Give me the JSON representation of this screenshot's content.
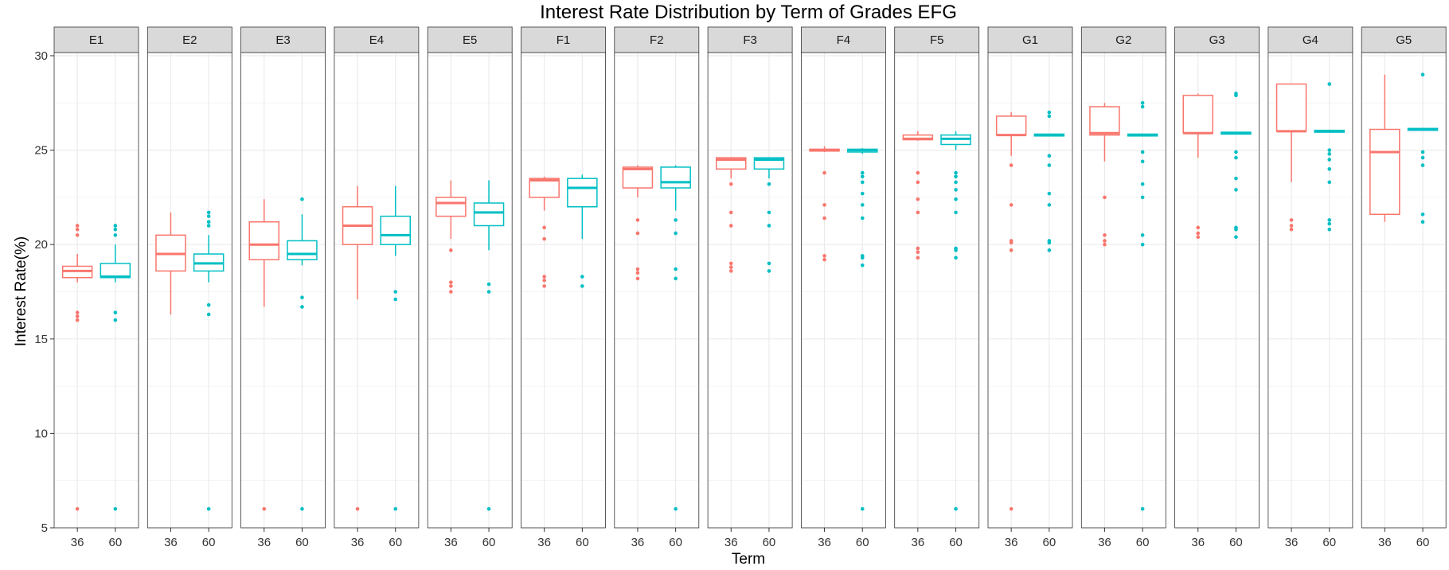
{
  "chart_data": {
    "type": "boxplot",
    "title": "Interest Rate Distribution by Term of Grades EFG",
    "xlabel": "Term",
    "ylabel": "Interest Rate(%)",
    "ylim": [
      5,
      30
    ],
    "yticks": [
      5,
      10,
      15,
      20,
      25,
      30
    ],
    "x_categories": [
      "36",
      "60"
    ],
    "grid": true,
    "colors": {
      "36": "#F8766D",
      "60": "#00BFC4"
    },
    "facets": [
      {
        "label": "E1",
        "boxes": [
          {
            "term": "36",
            "whisker_low": 18.0,
            "q1": 18.25,
            "median": 18.6,
            "q3": 18.85,
            "whisker_high": 19.5,
            "outliers": [
              16.0,
              16.2,
              16.4,
              20.5,
              20.8,
              21.0,
              6.0
            ]
          },
          {
            "term": "60",
            "whisker_low": 18.0,
            "q1": 18.25,
            "median": 18.3,
            "q3": 19.0,
            "whisker_high": 20.0,
            "outliers": [
              16.0,
              16.4,
              20.5,
              20.8,
              21.0,
              6.0
            ]
          }
        ]
      },
      {
        "label": "E2",
        "boxes": [
          {
            "term": "36",
            "whisker_low": 16.3,
            "q1": 18.6,
            "median": 19.5,
            "q3": 20.5,
            "whisker_high": 21.7,
            "outliers": []
          },
          {
            "term": "60",
            "whisker_low": 18.0,
            "q1": 18.6,
            "median": 19.0,
            "q3": 19.5,
            "whisker_high": 20.5,
            "outliers": [
              16.3,
              16.8,
              21.0,
              21.2,
              21.5,
              21.7,
              6.0
            ]
          }
        ]
      },
      {
        "label": "E3",
        "boxes": [
          {
            "term": "36",
            "whisker_low": 16.7,
            "q1": 19.2,
            "median": 20.0,
            "q3": 21.2,
            "whisker_high": 22.4,
            "outliers": [
              6.0
            ]
          },
          {
            "term": "60",
            "whisker_low": 18.9,
            "q1": 19.2,
            "median": 19.5,
            "q3": 20.2,
            "whisker_high": 21.6,
            "outliers": [
              16.7,
              17.2,
              22.4,
              6.0
            ]
          }
        ]
      },
      {
        "label": "E4",
        "boxes": [
          {
            "term": "36",
            "whisker_low": 17.1,
            "q1": 20.0,
            "median": 21.0,
            "q3": 22.0,
            "whisker_high": 23.1,
            "outliers": [
              6.0
            ]
          },
          {
            "term": "60",
            "whisker_low": 19.4,
            "q1": 20.0,
            "median": 20.5,
            "q3": 21.5,
            "whisker_high": 23.1,
            "outliers": [
              17.1,
              17.5,
              6.0
            ]
          }
        ]
      },
      {
        "label": "E5",
        "boxes": [
          {
            "term": "36",
            "whisker_low": 20.3,
            "q1": 21.5,
            "median": 22.2,
            "q3": 22.5,
            "whisker_high": 23.4,
            "outliers": [
              17.5,
              17.8,
              18.0,
              19.7
            ]
          },
          {
            "term": "60",
            "whisker_low": 19.7,
            "q1": 21.0,
            "median": 21.7,
            "q3": 22.2,
            "whisker_high": 23.4,
            "outliers": [
              17.5,
              17.9,
              6.0
            ]
          }
        ]
      },
      {
        "label": "F1",
        "boxes": [
          {
            "term": "36",
            "whisker_low": 21.8,
            "q1": 22.5,
            "median": 23.4,
            "q3": 23.5,
            "whisker_high": 23.6,
            "outliers": [
              17.8,
              18.1,
              18.3,
              20.3,
              20.9
            ]
          },
          {
            "term": "60",
            "whisker_low": 20.3,
            "q1": 22.0,
            "median": 23.0,
            "q3": 23.5,
            "whisker_high": 23.7,
            "outliers": [
              17.8,
              18.3
            ]
          }
        ]
      },
      {
        "label": "F2",
        "boxes": [
          {
            "term": "36",
            "whisker_low": 22.5,
            "q1": 23.0,
            "median": 24.0,
            "q3": 24.1,
            "whisker_high": 24.2,
            "outliers": [
              18.2,
              18.5,
              18.7,
              20.6,
              21.3
            ]
          },
          {
            "term": "60",
            "whisker_low": 21.8,
            "q1": 23.0,
            "median": 23.3,
            "q3": 24.1,
            "whisker_high": 24.2,
            "outliers": [
              18.2,
              18.7,
              20.6,
              21.3,
              6.0
            ]
          }
        ]
      },
      {
        "label": "F3",
        "boxes": [
          {
            "term": "36",
            "whisker_low": 23.5,
            "q1": 24.0,
            "median": 24.5,
            "q3": 24.6,
            "whisker_high": 24.6,
            "outliers": [
              18.6,
              18.8,
              19.0,
              21.0,
              21.7,
              23.2
            ]
          },
          {
            "term": "60",
            "whisker_low": 23.5,
            "q1": 24.0,
            "median": 24.5,
            "q3": 24.6,
            "whisker_high": 24.6,
            "outliers": [
              18.6,
              19.0,
              21.0,
              21.7,
              23.2
            ]
          }
        ]
      },
      {
        "label": "F4",
        "boxes": [
          {
            "term": "36",
            "whisker_low": 24.9,
            "q1": 24.95,
            "median": 25.0,
            "q3": 25.05,
            "whisker_high": 25.2,
            "outliers": [
              19.2,
              19.4,
              21.4,
              22.1,
              23.8
            ]
          },
          {
            "term": "60",
            "whisker_low": 24.8,
            "q1": 24.9,
            "median": 25.0,
            "q3": 25.05,
            "whisker_high": 25.1,
            "outliers": [
              18.9,
              19.3,
              19.4,
              21.4,
              22.1,
              22.7,
              23.3,
              23.6,
              23.8,
              6.0
            ]
          }
        ]
      },
      {
        "label": "F5",
        "boxes": [
          {
            "term": "36",
            "whisker_low": 25.5,
            "q1": 25.55,
            "median": 25.6,
            "q3": 25.8,
            "whisker_high": 26.0,
            "outliers": [
              19.3,
              19.6,
              19.8,
              21.7,
              22.4,
              23.3,
              23.8
            ]
          },
          {
            "term": "60",
            "whisker_low": 25.0,
            "q1": 25.3,
            "median": 25.6,
            "q3": 25.8,
            "whisker_high": 26.0,
            "outliers": [
              19.3,
              19.7,
              19.8,
              21.7,
              22.4,
              22.9,
              23.3,
              23.6,
              23.8,
              6.0
            ]
          }
        ]
      },
      {
        "label": "G1",
        "boxes": [
          {
            "term": "36",
            "whisker_low": 24.7,
            "q1": 25.8,
            "median": 25.8,
            "q3": 26.8,
            "whisker_high": 27.0,
            "outliers": [
              19.7,
              20.1,
              20.2,
              22.1,
              24.2,
              6.0
            ]
          },
          {
            "term": "60",
            "whisker_low": 25.75,
            "q1": 25.75,
            "median": 25.8,
            "q3": 25.85,
            "whisker_high": 25.85,
            "outliers": [
              19.7,
              20.1,
              20.2,
              22.1,
              22.7,
              24.2,
              24.7,
              26.8,
              27.0
            ]
          }
        ]
      },
      {
        "label": "G2",
        "boxes": [
          {
            "term": "36",
            "whisker_low": 24.4,
            "q1": 25.8,
            "median": 25.9,
            "q3": 27.3,
            "whisker_high": 27.5,
            "outliers": [
              20.0,
              20.2,
              20.5,
              22.5
            ]
          },
          {
            "term": "60",
            "whisker_low": 25.75,
            "q1": 25.75,
            "median": 25.8,
            "q3": 25.85,
            "whisker_high": 25.85,
            "outliers": [
              20.0,
              20.5,
              22.5,
              23.2,
              24.4,
              24.9,
              27.3,
              27.5,
              6.0
            ]
          }
        ]
      },
      {
        "label": "G3",
        "boxes": [
          {
            "term": "36",
            "whisker_low": 24.6,
            "q1": 25.9,
            "median": 25.9,
            "q3": 27.9,
            "whisker_high": 28.0,
            "outliers": [
              20.4,
              20.6,
              20.9
            ]
          },
          {
            "term": "60",
            "whisker_low": 25.85,
            "q1": 25.85,
            "median": 25.9,
            "q3": 25.95,
            "whisker_high": 25.95,
            "outliers": [
              20.4,
              20.8,
              20.9,
              22.9,
              23.5,
              24.6,
              24.9,
              27.9,
              28.0
            ]
          }
        ]
      },
      {
        "label": "G4",
        "boxes": [
          {
            "term": "36",
            "whisker_low": 23.3,
            "q1": 26.0,
            "median": 26.0,
            "q3": 28.5,
            "whisker_high": 28.5,
            "outliers": [
              20.8,
              21.0,
              21.3
            ]
          },
          {
            "term": "60",
            "whisker_low": 25.95,
            "q1": 25.95,
            "median": 26.0,
            "q3": 26.05,
            "whisker_high": 26.05,
            "outliers": [
              20.8,
              21.1,
              21.3,
              23.3,
              24.0,
              24.5,
              24.8,
              25.0,
              28.5
            ]
          }
        ]
      },
      {
        "label": "G5",
        "boxes": [
          {
            "term": "36",
            "whisker_low": 21.2,
            "q1": 21.6,
            "median": 24.9,
            "q3": 26.1,
            "whisker_high": 29.0,
            "outliers": []
          },
          {
            "term": "60",
            "whisker_low": 26.05,
            "q1": 26.05,
            "median": 26.1,
            "q3": 26.15,
            "whisker_high": 26.15,
            "outliers": [
              21.2,
              21.6,
              24.2,
              24.6,
              24.9,
              29.0
            ]
          }
        ]
      }
    ]
  }
}
